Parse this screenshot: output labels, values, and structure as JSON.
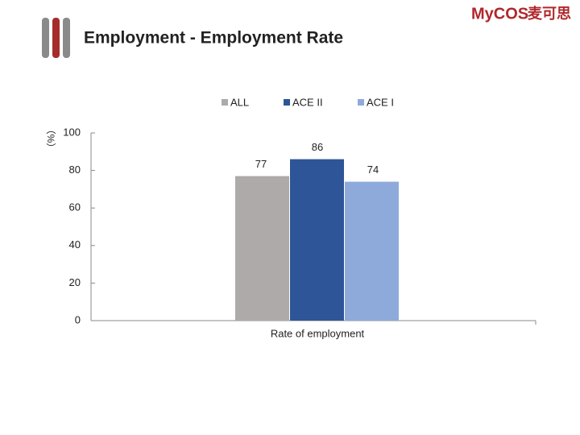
{
  "logo": {
    "brand": "MyCOS",
    "name": "麦可思"
  },
  "chart_data": {
    "type": "bar",
    "title": "Employment - Employment Rate",
    "ylabel": "（%）",
    "categories": [
      "Rate of employment"
    ],
    "series": [
      {
        "name": "ALL",
        "color": "#adaaa9",
        "values": [
          77
        ]
      },
      {
        "name": "ACE II",
        "color": "#2e5597",
        "values": [
          86
        ]
      },
      {
        "name": "ACE I",
        "color": "#8eaadb",
        "values": [
          74
        ]
      }
    ],
    "ylim": [
      0,
      100
    ],
    "yticks": [
      0,
      20,
      40,
      60,
      80,
      100
    ],
    "legend": "top"
  }
}
